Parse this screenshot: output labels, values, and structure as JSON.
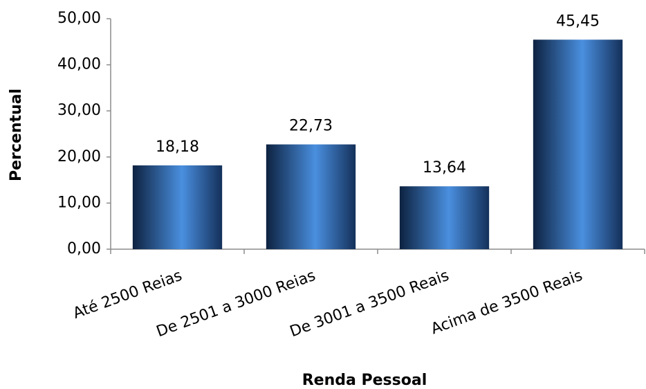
{
  "chart_data": {
    "type": "bar",
    "x_label": "Renda Pessoal",
    "y_label": "Percentual",
    "categories": [
      "Até 2500 Reias",
      "De 2501 a 3000 Reias",
      "De 3001 a 3500 Reais",
      "Acima de 3500 Reais"
    ],
    "values": [
      18.18,
      22.73,
      13.64,
      45.45
    ],
    "value_labels": [
      "18,18",
      "22,73",
      "13,64",
      "45,45"
    ],
    "color": "#4a8fdf",
    "ylim": [
      0,
      50
    ],
    "yticks": [
      {
        "value": 0,
        "label": "0,00"
      },
      {
        "value": 10,
        "label": "10,00"
      },
      {
        "value": 20,
        "label": "20,00"
      },
      {
        "value": 30,
        "label": "30,00"
      },
      {
        "value": 40,
        "label": "40,00"
      },
      {
        "value": 50,
        "label": "50,00"
      }
    ],
    "grid": false
  }
}
